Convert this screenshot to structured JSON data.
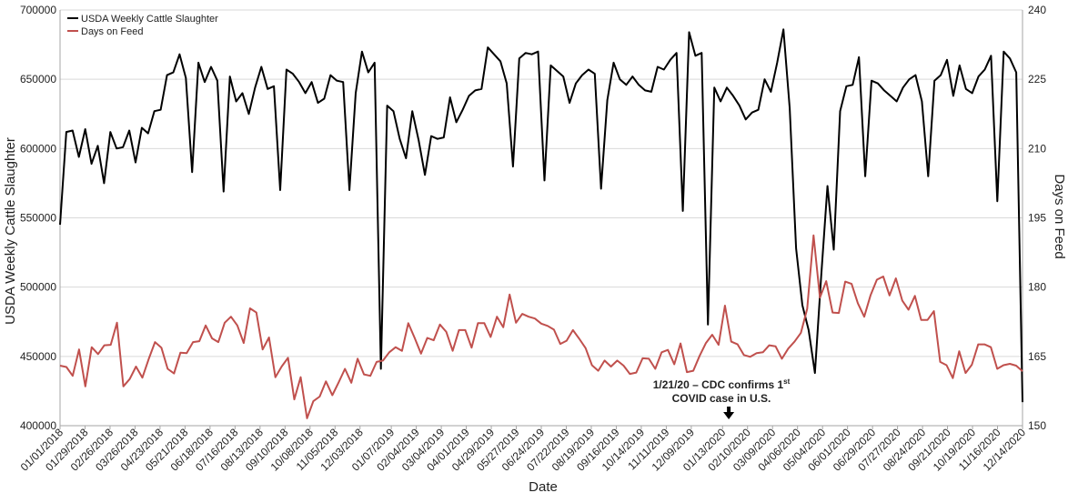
{
  "chart_data": {
    "type": "line",
    "xlabel": "Date",
    "ylabel_left": "USDA Weekly Cattle Slaughter",
    "ylabel_right": "Days on Feed",
    "ylim_left": [
      400000,
      700000
    ],
    "ylim_right": [
      150,
      240
    ],
    "yticks_left": [
      400000,
      450000,
      500000,
      550000,
      600000,
      650000,
      700000
    ],
    "yticks_right": [
      150,
      165,
      180,
      195,
      210,
      225,
      240
    ],
    "xticks": [
      "01/01/2018",
      "01/29/2018",
      "02/26/2018",
      "03/26/2018",
      "04/23/2018",
      "05/21/2018",
      "06/18/2018",
      "07/16/2018",
      "08/13/2018",
      "09/10/2018",
      "10/08/2018",
      "11/05/2018",
      "12/03/2018",
      "01/07/2019",
      "02/04/2019",
      "03/04/2019",
      "04/01/2019",
      "04/29/2019",
      "05/27/2019",
      "06/24/2019",
      "07/22/2019",
      "08/19/2019",
      "09/16/2019",
      "10/14/2019",
      "11/11/2019",
      "12/09/2019",
      "01/13/2020",
      "02/10/2020",
      "03/09/2020",
      "04/06/2020",
      "05/04/2020",
      "06/01/2020",
      "06/29/2020",
      "07/27/2020",
      "08/24/2020",
      "09/21/2020",
      "10/19/2020",
      "11/16/2020",
      "12/14/2020"
    ],
    "grid": "horizontal",
    "legend_position": "top-left",
    "series": [
      {
        "name": "USDA Weekly Cattle Slaughter",
        "axis": "left",
        "color": "#000000",
        "values": [
          545000,
          612000,
          613000,
          594000,
          614000,
          589000,
          602000,
          575000,
          612000,
          600000,
          601000,
          613000,
          590000,
          615000,
          611000,
          627000,
          628000,
          653000,
          655000,
          668000,
          651000,
          583000,
          662000,
          648000,
          659000,
          649000,
          569000,
          652000,
          634000,
          640000,
          625000,
          644000,
          659000,
          643000,
          645000,
          570000,
          657000,
          654000,
          648000,
          640000,
          648000,
          633000,
          636000,
          653000,
          649000,
          648000,
          570000,
          640000,
          670000,
          655000,
          662000,
          441000,
          631000,
          627000,
          607000,
          593000,
          627000,
          606000,
          581000,
          609000,
          607000,
          608000,
          637000,
          619000,
          628000,
          638000,
          642000,
          643000,
          673000,
          668000,
          663000,
          647000,
          587000,
          665000,
          669000,
          668000,
          670000,
          577000,
          660000,
          656000,
          652000,
          633000,
          647000,
          653000,
          657000,
          654000,
          571000,
          635000,
          662000,
          650000,
          646000,
          652000,
          646000,
          642000,
          641000,
          659000,
          657000,
          664000,
          669000,
          555000,
          684000,
          667000,
          669000,
          473000,
          644000,
          634000,
          644000,
          638000,
          631000,
          621000,
          626000,
          628000,
          650000,
          641000,
          662000,
          686000,
          629000,
          528000,
          487000,
          469000,
          438000,
          508000,
          573000,
          527000,
          627000,
          645000,
          646000,
          666000,
          580000,
          649000,
          647000,
          642000,
          638000,
          634000,
          644000,
          650000,
          653000,
          634000,
          580000,
          649000,
          653000,
          664000,
          638000,
          660000,
          643000,
          640000,
          652000,
          657000,
          667000,
          562000,
          670000,
          665000,
          655000,
          417000
        ]
      },
      {
        "name": "Days on Feed",
        "axis": "right",
        "color": "#c0504d",
        "values": [
          163,
          162.7,
          160.8,
          166.5,
          158.5,
          167,
          165.5,
          167.4,
          167.5,
          172.3,
          158.5,
          160.1,
          162.8,
          160.4,
          164.4,
          168.1,
          166.9,
          162.3,
          161.3,
          165.8,
          165.7,
          168.1,
          168.3,
          171.7,
          168.9,
          168.1,
          172.3,
          173.6,
          171.7,
          167.9,
          175.4,
          174.5,
          166.5,
          169.1,
          160.5,
          162.8,
          164.7,
          155.7,
          160.5,
          151.6,
          155.3,
          156.3,
          159.6,
          156.6,
          159.4,
          162.3,
          159.3,
          164.5,
          161.1,
          160.8,
          163.8,
          164.1,
          165.9,
          167,
          166.2,
          172.2,
          169,
          165.6,
          169,
          168.5,
          171.9,
          170.3,
          166.2,
          170.7,
          170.7,
          166.9,
          172.2,
          172.2,
          169.2,
          173.6,
          171.3,
          178.4,
          172.3,
          174.2,
          173.6,
          173.2,
          172.1,
          171.6,
          170.8,
          167.7,
          168.4,
          170.7,
          168.8,
          166.8,
          163.1,
          161.9,
          164.1,
          162.8,
          164.1,
          163,
          161.2,
          161.5,
          164.6,
          164.5,
          162.3,
          165.9,
          166.4,
          163.3,
          167.8,
          161.6,
          161.9,
          165.1,
          167.9,
          169.7,
          167.5,
          176,
          168.2,
          167.6,
          165.3,
          164.9,
          165.7,
          165.9,
          167.4,
          167.2,
          164.5,
          166.7,
          168.2,
          170.1,
          175.3,
          191.2,
          177.7,
          181.3,
          174.5,
          174.4,
          181.2,
          180.7,
          176.5,
          173.6,
          178.2,
          181.6,
          182.3,
          178.2,
          181.9,
          177.1,
          175.1,
          178.1,
          172.9,
          172.9,
          174.8,
          163.8,
          163.1,
          160.3,
          166.1,
          161.4,
          163.2,
          167.6,
          167.6,
          167,
          162.3,
          163.1,
          163.4,
          163,
          161.8
        ]
      }
    ],
    "annotation": {
      "line1": "1/21/20 – CDC confirms 1",
      "sup": "st",
      "line2": "COVID case in U.S.",
      "arrow_date": "01/20/2020"
    }
  }
}
